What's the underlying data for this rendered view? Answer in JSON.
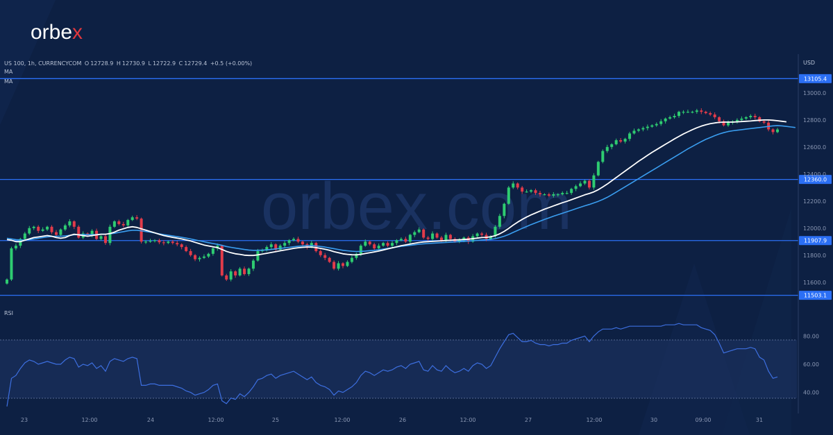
{
  "brand": {
    "name": "orbe",
    "accent": "x"
  },
  "header": {
    "symbol": "US 100, 1h, CURRENCYCOM",
    "o_label": "O",
    "o": "12728.9",
    "h_label": "H",
    "h": "12730.9",
    "l_label": "L",
    "l": "12722.9",
    "c_label": "C",
    "c": "12729.4",
    "change": "+0.5 (+0.00%)"
  },
  "indicators": {
    "ma1": "MA",
    "ma2": "MA",
    "rsi": "RSI"
  },
  "colors": {
    "background": "#0d2043",
    "up": "#2ecc71",
    "down": "#e23b4a",
    "level_line": "#2b6ff5",
    "ma_fast": "#ffffff",
    "ma_slow": "#3a9ef0",
    "rsi": "#3d6fe0"
  },
  "chart_data": [
    {
      "type": "candlestick",
      "title": "",
      "currency": "USD",
      "ylim": [
        11450,
        13220
      ],
      "y_ticks": [
        "13000.0",
        "12800.0",
        "12600.0",
        "12400.0",
        "12200.0",
        "12000.0",
        "11800.0",
        "11600.0"
      ],
      "x_ticks": [
        "23",
        "12:00",
        "24",
        "12:00",
        "25",
        "12:00",
        "26",
        "12:00",
        "27",
        "12:00",
        "30",
        "09:00",
        "31"
      ],
      "horizontal_levels": [
        13105.4,
        12360.0,
        11907.9,
        11503.1
      ],
      "horizontal_level_labels": [
        "13105.4",
        "12360.0",
        "11907.9",
        "11503.1"
      ],
      "series": [
        {
          "name": "US 100",
          "close": [
            11620,
            11850,
            11870,
            11920,
            11960,
            12000,
            12010,
            11980,
            11990,
            12010,
            11970,
            11950,
            11990,
            12020,
            12050,
            12010,
            11930,
            11960,
            11950,
            11980,
            11920,
            11940,
            11890,
            12010,
            12050,
            12030,
            12020,
            12060,
            12080,
            12070,
            11900,
            11900,
            11905,
            11910,
            11895,
            11890,
            11900,
            11890,
            11880,
            11860,
            11830,
            11800,
            11770,
            11780,
            11790,
            11810,
            11850,
            11870,
            11650,
            11620,
            11680,
            11650,
            11700,
            11660,
            11700,
            11760,
            11830,
            11840,
            11860,
            11880,
            11840,
            11870,
            11890,
            11910,
            11920,
            11900,
            11880,
            11860,
            11890,
            11830,
            11800,
            11780,
            11750,
            11700,
            11740,
            11720,
            11750,
            11780,
            11810,
            11870,
            11900,
            11880,
            11850,
            11870,
            11890,
            11870,
            11890,
            11910,
            11920,
            11900,
            11950,
            11970,
            11990,
            11930,
            11920,
            11960,
            11930,
            11910,
            11950,
            11920,
            11900,
            11910,
            11930,
            11900,
            11940,
            11960,
            11950,
            11920,
            11940,
            12010,
            12090,
            12180,
            12300,
            12330,
            12300,
            12270,
            12270,
            12280,
            12260,
            12250,
            12250,
            12240,
            12250,
            12250,
            12260,
            12260,
            12290,
            12310,
            12330,
            12350,
            12300,
            12390,
            12490,
            12570,
            12600,
            12620,
            12650,
            12640,
            12660,
            12700,
            12720,
            12730,
            12740,
            12750,
            12760,
            12770,
            12790,
            12810,
            12820,
            12830,
            12860,
            12860,
            12860,
            12860,
            12870,
            12860,
            12850,
            12840,
            12820,
            12790,
            12760,
            12780,
            12790,
            12800,
            12810,
            12820,
            12830,
            12820,
            12790,
            12780,
            12730,
            12710,
            12729.4
          ]
        },
        {
          "name": "MA",
          "values": [
            11915,
            11910,
            11900,
            11900,
            11910,
            11920,
            11930,
            11935,
            11940,
            11945,
            11940,
            11930,
            11925,
            11930,
            11945,
            11955,
            11950,
            11945,
            11940,
            11945,
            11950,
            11955,
            11955,
            11960,
            11970,
            11985,
            11995,
            12005,
            12010,
            12005,
            11995,
            11985,
            11975,
            11965,
            11955,
            11945,
            11938,
            11932,
            11926,
            11920,
            11912,
            11905,
            11895,
            11885,
            11875,
            11868,
            11862,
            11856,
            11842,
            11828,
            11818,
            11810,
            11806,
            11800,
            11798,
            11798,
            11802,
            11808,
            11814,
            11820,
            11826,
            11832,
            11838,
            11844,
            11850,
            11855,
            11858,
            11860,
            11860,
            11856,
            11850,
            11844,
            11836,
            11826,
            11818,
            11810,
            11806,
            11803,
            11802,
            11806,
            11812,
            11818,
            11824,
            11830,
            11838,
            11846,
            11854,
            11862,
            11870,
            11876,
            11882,
            11888,
            11894,
            11898,
            11900,
            11902,
            11904,
            11906,
            11908,
            11910,
            11912,
            11914,
            11916,
            11918,
            11922,
            11926,
            11930,
            11932,
            11936,
            11944,
            11958,
            11976,
            11998,
            12022,
            12044,
            12064,
            12082,
            12098,
            12112,
            12126,
            12140,
            12152,
            12164,
            12176,
            12188,
            12198,
            12210,
            12222,
            12234,
            12246,
            12256,
            12268,
            12284,
            12304,
            12326,
            12350,
            12374,
            12398,
            12422,
            12446,
            12470,
            12494,
            12516,
            12538,
            12560,
            12580,
            12600,
            12620,
            12640,
            12660,
            12678,
            12696,
            12712,
            12728,
            12742,
            12754,
            12764,
            12772,
            12778,
            12782,
            12784,
            12784,
            12784,
            12786,
            12788,
            12790,
            12792,
            12795,
            12798,
            12800,
            12800,
            12798,
            12794,
            12790,
            12786
          ]
        },
        {
          "name": "MA",
          "values": [
            11925,
            11920,
            11915,
            11912,
            11912,
            11915,
            11920,
            11925,
            11930,
            11935,
            11938,
            11940,
            11940,
            11942,
            11946,
            11950,
            11952,
            11952,
            11952,
            11952,
            11953,
            11955,
            11956,
            11958,
            11962,
            11968,
            11974,
            11980,
            11984,
            11984,
            11980,
            11975,
            11970,
            11964,
            11958,
            11952,
            11947,
            11942,
            11937,
            11932,
            11926,
            11920,
            11913,
            11906,
            11899,
            11892,
            11886,
            11880,
            11872,
            11864,
            11858,
            11852,
            11847,
            11842,
            11838,
            11836,
            11836,
            11837,
            11839,
            11842,
            11846,
            11850,
            11854,
            11858,
            11862,
            11866,
            11868,
            11870,
            11870,
            11868,
            11864,
            11860,
            11854,
            11848,
            11842,
            11836,
            11832,
            11829,
            11827,
            11828,
            11830,
            11833,
            11836,
            11840,
            11845,
            11850,
            11855,
            11860,
            11865,
            11869,
            11873,
            11877,
            11881,
            11884,
            11886,
            11888,
            11890,
            11892,
            11894,
            11896,
            11898,
            11900,
            11902,
            11904,
            11906,
            11909,
            11912,
            11914,
            11917,
            11922,
            11930,
            11940,
            11953,
            11968,
            11983,
            11998,
            12012,
            12026,
            12039,
            12052,
            12064,
            12076,
            12088,
            12099,
            12110,
            12121,
            12132,
            12143,
            12154,
            12165,
            12175,
            12186,
            12198,
            12212,
            12228,
            12246,
            12266,
            12286,
            12306,
            12326,
            12346,
            12366,
            12386,
            12406,
            12426,
            12446,
            12466,
            12486,
            12506,
            12526,
            12546,
            12566,
            12586,
            12604,
            12622,
            12640,
            12656,
            12670,
            12684,
            12696,
            12706,
            12714,
            12720,
            12724,
            12728,
            12732,
            12736,
            12740,
            12744,
            12748,
            12752,
            12756,
            12758,
            12756,
            12752,
            12748,
            12744
          ]
        }
      ]
    },
    {
      "type": "line",
      "title": "RSI",
      "ylim": [
        25,
        95
      ],
      "y_ticks": [
        "80.00",
        "60.00",
        "40.00"
      ],
      "band": [
        30,
        70
      ],
      "series": [
        {
          "name": "RSI",
          "values": [
            30,
            50,
            52,
            57,
            61,
            63,
            62,
            60,
            61,
            62,
            61,
            60,
            60,
            63,
            65,
            64,
            58,
            60,
            59,
            61,
            57,
            59,
            55,
            62,
            64,
            63,
            62,
            64,
            65,
            64,
            45,
            45,
            46,
            46,
            45,
            45,
            45,
            45,
            44,
            43,
            41,
            40,
            38,
            39,
            40,
            42,
            45,
            46,
            34,
            32,
            36,
            35,
            39,
            37,
            40,
            44,
            49,
            50,
            52,
            53,
            50,
            52,
            53,
            54,
            55,
            53,
            51,
            49,
            51,
            47,
            45,
            44,
            42,
            38,
            41,
            40,
            42,
            44,
            47,
            52,
            55,
            54,
            52,
            54,
            56,
            55,
            56,
            58,
            59,
            57,
            60,
            61,
            62,
            56,
            55,
            59,
            56,
            55,
            59,
            56,
            54,
            55,
            57,
            55,
            59,
            61,
            60,
            57,
            59,
            65,
            71,
            76,
            81,
            82,
            79,
            76,
            76,
            77,
            75,
            74,
            74,
            73,
            74,
            74,
            75,
            75,
            77,
            78,
            79,
            80,
            76,
            80,
            83,
            85,
            85,
            85,
            86,
            85,
            86,
            87,
            87,
            87,
            87,
            87,
            87,
            87,
            87,
            88,
            88,
            88,
            89,
            88,
            88,
            88,
            88,
            86,
            85,
            84,
            81,
            75,
            68,
            69,
            70,
            71,
            71,
            71,
            72,
            71,
            65,
            63,
            55,
            50,
            51
          ]
        }
      ]
    }
  ]
}
